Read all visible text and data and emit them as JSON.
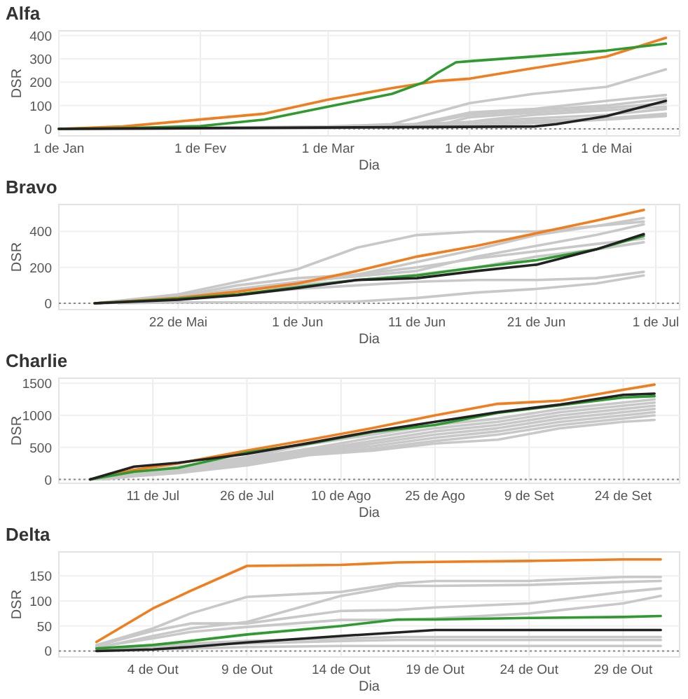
{
  "chart_data": [
    {
      "type": "line",
      "title": "Alfa",
      "xlabel": "Dia",
      "ylabel": "DSR",
      "xlim": [
        "--01-01",
        "--05-17"
      ],
      "ylim": [
        -30,
        420
      ],
      "yticks": [
        0,
        100,
        200,
        300,
        400
      ],
      "xticks": [
        {
          "value": "--01-01",
          "label": "1 de Jan"
        },
        {
          "value": "--02-01",
          "label": "1 de Fev"
        },
        {
          "value": "--03-01",
          "label": "1 de Mar"
        },
        {
          "value": "--04-01",
          "label": "1 de Abr"
        },
        {
          "value": "--05-01",
          "label": "1 de Mai"
        }
      ],
      "grid": true,
      "line_style": "solid",
      "marker": "none",
      "ref_lines": [
        {
          "axis": "y",
          "value": 0,
          "color": "#888888",
          "line_style": "dotted"
        }
      ],
      "series": [
        {
          "color": "#c8c8c8",
          "x": [
            "--01-01",
            "--03-01",
            "--03-15",
            "--04-01",
            "--04-15",
            "--05-01",
            "--05-14"
          ],
          "values": [
            0,
            10,
            20,
            110,
            150,
            180,
            255
          ]
        },
        {
          "color": "#c8c8c8",
          "x": [
            "--01-01",
            "--03-01",
            "--03-20",
            "--04-01",
            "--04-15",
            "--05-01",
            "--05-14"
          ],
          "values": [
            0,
            8,
            20,
            70,
            85,
            120,
            145
          ]
        },
        {
          "color": "#c8c8c8",
          "x": [
            "--01-01",
            "--03-01",
            "--03-20",
            "--04-01",
            "--04-15",
            "--05-01",
            "--05-14"
          ],
          "values": [
            0,
            8,
            15,
            60,
            80,
            100,
            130
          ]
        },
        {
          "color": "#c8c8c8",
          "x": [
            "--01-01",
            "--03-01",
            "--03-25",
            "--04-01",
            "--04-15",
            "--05-01",
            "--05-14"
          ],
          "values": [
            0,
            6,
            15,
            50,
            70,
            90,
            110
          ]
        },
        {
          "color": "#c8c8c8",
          "x": [
            "--01-01",
            "--03-01",
            "--03-25",
            "--04-05",
            "--04-15",
            "--05-01",
            "--05-14"
          ],
          "values": [
            0,
            5,
            12,
            40,
            60,
            80,
            95
          ]
        },
        {
          "color": "#c8c8c8",
          "x": [
            "--01-01",
            "--03-01",
            "--04-01",
            "--04-15",
            "--05-01",
            "--05-14"
          ],
          "values": [
            0,
            5,
            30,
            45,
            60,
            85
          ]
        },
        {
          "color": "#c8c8c8",
          "x": [
            "--01-01",
            "--03-01",
            "--04-01",
            "--04-15",
            "--05-01",
            "--05-14"
          ],
          "values": [
            0,
            4,
            20,
            35,
            45,
            65
          ]
        },
        {
          "color": "#c8c8c8",
          "x": [
            "--01-01",
            "--03-01",
            "--04-01",
            "--04-15",
            "--05-01",
            "--05-14"
          ],
          "values": [
            0,
            3,
            15,
            25,
            40,
            55
          ]
        },
        {
          "color": "#f07d1e",
          "x": [
            "--01-01",
            "--01-15",
            "--02-01",
            "--02-15",
            "--03-01",
            "--03-15",
            "--03-25",
            "--04-01",
            "--04-15",
            "--05-01",
            "--05-14"
          ],
          "values": [
            0,
            10,
            40,
            65,
            125,
            175,
            205,
            215,
            260,
            310,
            390
          ]
        },
        {
          "color": "#2f9a2f",
          "x": [
            "--01-01",
            "--01-15",
            "--02-01",
            "--02-15",
            "--03-01",
            "--03-15",
            "--03-22",
            "--03-25",
            "--03-29",
            "--04-01",
            "--04-15",
            "--05-01",
            "--05-14"
          ],
          "values": [
            0,
            3,
            12,
            40,
            95,
            150,
            200,
            240,
            285,
            290,
            310,
            335,
            365
          ]
        },
        {
          "color": "#222222",
          "x": [
            "--01-01",
            "--04-15",
            "--04-20",
            "--05-01",
            "--05-14"
          ],
          "values": [
            0,
            10,
            20,
            55,
            120
          ]
        }
      ]
    },
    {
      "type": "line",
      "title": "Bravo",
      "xlabel": "Dia",
      "ylabel": "DSR",
      "xlim": [
        "--05-12",
        "--07-03"
      ],
      "ylim": [
        -35,
        550
      ],
      "yticks": [
        0,
        200,
        400
      ],
      "xticks": [
        {
          "value": "--05-22",
          "label": "22 de Mai"
        },
        {
          "value": "--06-01",
          "label": "1 de Jun"
        },
        {
          "value": "--06-11",
          "label": "11 de Jun"
        },
        {
          "value": "--06-21",
          "label": "21 de Jun"
        },
        {
          "value": "--07-01",
          "label": "1 de Jul"
        }
      ],
      "grid": true,
      "line_style": "solid",
      "marker": "none",
      "ref_lines": [
        {
          "axis": "y",
          "value": 0,
          "color": "#888888",
          "line_style": "dotted"
        }
      ],
      "x": [
        "--05-15",
        "--05-22",
        "--05-27",
        "--06-01",
        "--06-06",
        "--06-11",
        "--06-16",
        "--06-21",
        "--06-26",
        "--06-30"
      ],
      "series": [
        {
          "color": "#c8c8c8",
          "values": [
            0,
            50,
            120,
            190,
            310,
            380,
            400,
            400,
            430,
            475
          ]
        },
        {
          "color": "#c8c8c8",
          "x": [
            "--05-16",
            "--05-22",
            "--05-27",
            "--06-01",
            "--06-06",
            "--06-11",
            "--06-16",
            "--06-21",
            "--06-26",
            "--06-30"
          ],
          "values": [
            0,
            40,
            100,
            140,
            160,
            230,
            300,
            380,
            430,
            455
          ]
        },
        {
          "color": "#c8c8c8",
          "values": [
            0,
            35,
            80,
            120,
            150,
            180,
            260,
            320,
            380,
            440
          ]
        },
        {
          "color": "#c8c8c8",
          "values": [
            0,
            25,
            70,
            100,
            130,
            160,
            200,
            260,
            300,
            340
          ]
        },
        {
          "color": "#c8c8c8",
          "values": [
            0,
            20,
            50,
            80,
            100,
            120,
            130,
            130,
            140,
            175
          ]
        },
        {
          "color": "#c8c8c8",
          "x": [
            "--05-17",
            "--05-22",
            "--05-27",
            "--06-01",
            "--06-06",
            "--06-11",
            "--06-16",
            "--06-21",
            "--06-26",
            "--06-30"
          ],
          "values": [
            0,
            5,
            5,
            5,
            10,
            30,
            60,
            80,
            110,
            155
          ]
        },
        {
          "color": "#c8c8c8",
          "values": [
            0,
            30,
            70,
            110,
            160,
            200,
            250,
            290,
            330,
            360
          ]
        },
        {
          "color": "#f07d1e",
          "values": [
            0,
            30,
            65,
            110,
            180,
            260,
            320,
            390,
            460,
            520
          ]
        },
        {
          "color": "#2f9a2f",
          "values": [
            0,
            25,
            50,
            90,
            130,
            155,
            200,
            240,
            300,
            375
          ]
        },
        {
          "color": "#222222",
          "values": [
            0,
            20,
            45,
            85,
            130,
            140,
            180,
            215,
            300,
            385
          ]
        }
      ]
    },
    {
      "type": "line",
      "title": "Charlie",
      "xlabel": "Dia",
      "ylabel": "DSR",
      "xlim": [
        "--06-26",
        "--10-03"
      ],
      "ylim": [
        -60,
        1580
      ],
      "yticks": [
        0,
        500,
        1000,
        1500
      ],
      "xticks": [
        {
          "value": "--07-11",
          "label": "11 de Jul"
        },
        {
          "value": "--07-26",
          "label": "26 de Jul"
        },
        {
          "value": "--08-10",
          "label": "10 de Ago"
        },
        {
          "value": "--08-25",
          "label": "25 de Ago"
        },
        {
          "value": "--09-09",
          "label": "9 de Set"
        },
        {
          "value": "--09-24",
          "label": "24 de Set"
        }
      ],
      "grid": true,
      "line_style": "solid",
      "marker": "none",
      "ref_lines": [
        {
          "axis": "y",
          "value": 0,
          "color": "#888888",
          "line_style": "dotted"
        }
      ],
      "x": [
        "--07-01",
        "--07-08",
        "--07-15",
        "--07-26",
        "--08-05",
        "--08-15",
        "--08-25",
        "--09-04",
        "--09-14",
        "--09-24",
        "--09-29"
      ],
      "series": [
        {
          "color": "#c8c8c8",
          "values": [
            0,
            120,
            200,
            350,
            550,
            700,
            850,
            950,
            1100,
            1200,
            1250
          ]
        },
        {
          "color": "#c8c8c8",
          "values": [
            0,
            100,
            180,
            330,
            480,
            650,
            800,
            900,
            1050,
            1150,
            1200
          ]
        },
        {
          "color": "#c8c8c8",
          "values": [
            0,
            90,
            160,
            300,
            450,
            600,
            750,
            850,
            1000,
            1100,
            1150
          ]
        },
        {
          "color": "#c8c8c8",
          "values": [
            0,
            80,
            150,
            280,
            430,
            560,
            700,
            800,
            950,
            1050,
            1100
          ]
        },
        {
          "color": "#c8c8c8",
          "values": [
            0,
            70,
            140,
            260,
            420,
            520,
            650,
            750,
            900,
            1000,
            1050
          ]
        },
        {
          "color": "#c8c8c8",
          "x": [
            "--07-02",
            "--07-08",
            "--07-15",
            "--07-26",
            "--08-05",
            "--08-15",
            "--08-25",
            "--09-04",
            "--09-14",
            "--09-24",
            "--09-29"
          ],
          "values": [
            0,
            60,
            120,
            240,
            400,
            480,
            600,
            700,
            850,
            950,
            1000
          ]
        },
        {
          "color": "#c8c8c8",
          "x": [
            "--07-03",
            "--07-08",
            "--07-15",
            "--07-26",
            "--08-05",
            "--08-15",
            "--08-25",
            "--09-04",
            "--09-14",
            "--09-24",
            "--09-29"
          ],
          "values": [
            0,
            50,
            100,
            220,
            380,
            450,
            560,
            620,
            800,
            900,
            930
          ]
        },
        {
          "color": "#f07d1e",
          "values": [
            0,
            150,
            250,
            450,
            620,
            800,
            1000,
            1180,
            1230,
            1400,
            1480
          ]
        },
        {
          "color": "#2f9a2f",
          "values": [
            0,
            120,
            180,
            420,
            560,
            740,
            850,
            1040,
            1160,
            1280,
            1300
          ]
        },
        {
          "color": "#222222",
          "values": [
            0,
            200,
            260,
            400,
            570,
            750,
            900,
            1050,
            1170,
            1320,
            1340
          ]
        }
      ]
    },
    {
      "type": "line",
      "title": "Delta",
      "xlabel": "Dia",
      "ylabel": "DSR",
      "xlim": [
        "--09-29",
        "--11-01"
      ],
      "ylim": [
        -12,
        198
      ],
      "yticks": [
        0,
        50,
        100,
        150
      ],
      "xticks": [
        {
          "value": "--10-04",
          "label": "4 de Out"
        },
        {
          "value": "--10-09",
          "label": "9 de Out"
        },
        {
          "value": "--10-14",
          "label": "14 de Out"
        },
        {
          "value": "--10-19",
          "label": "19 de Out"
        },
        {
          "value": "--10-24",
          "label": "24 de Out"
        },
        {
          "value": "--10-29",
          "label": "29 de Out"
        }
      ],
      "grid": true,
      "line_style": "solid",
      "marker": "none",
      "ref_lines": [
        {
          "axis": "y",
          "value": 0,
          "color": "#888888",
          "line_style": "dotted"
        }
      ],
      "x": [
        "--10-01",
        "--10-04",
        "--10-06",
        "--10-09",
        "--10-14",
        "--10-17",
        "--10-19",
        "--10-24",
        "--10-29",
        "--10-31"
      ],
      "series": [
        {
          "color": "#c8c8c8",
          "values": [
            12,
            45,
            75,
            108,
            118,
            135,
            140,
            140,
            148,
            148
          ]
        },
        {
          "color": "#c8c8c8",
          "values": [
            6,
            30,
            45,
            58,
            110,
            130,
            130,
            132,
            138,
            140
          ]
        },
        {
          "color": "#c8c8c8",
          "values": [
            10,
            40,
            55,
            55,
            80,
            82,
            87,
            95,
            118,
            125
          ]
        },
        {
          "color": "#c8c8c8",
          "values": [
            8,
            25,
            38,
            48,
            62,
            62,
            65,
            75,
            95,
            110
          ]
        },
        {
          "color": "#c8c8c8",
          "values": [
            2,
            10,
            15,
            20,
            25,
            28,
            28,
            28,
            28,
            28
          ]
        },
        {
          "color": "#c8c8c8",
          "values": [
            2,
            8,
            12,
            15,
            20,
            22,
            22,
            22,
            22,
            22
          ]
        },
        {
          "color": "#c8c8c8",
          "values": [
            0,
            3,
            5,
            8,
            10,
            10,
            10,
            10,
            10,
            10
          ]
        },
        {
          "color": "#f07d1e",
          "values": [
            18,
            85,
            120,
            170,
            172,
            177,
            178,
            180,
            183,
            183
          ]
        },
        {
          "color": "#2f9a2f",
          "values": [
            5,
            12,
            20,
            33,
            50,
            63,
            63,
            66,
            68,
            70
          ]
        },
        {
          "color": "#222222",
          "values": [
            0,
            3,
            8,
            17,
            30,
            37,
            42,
            42,
            42,
            42
          ]
        }
      ]
    }
  ]
}
